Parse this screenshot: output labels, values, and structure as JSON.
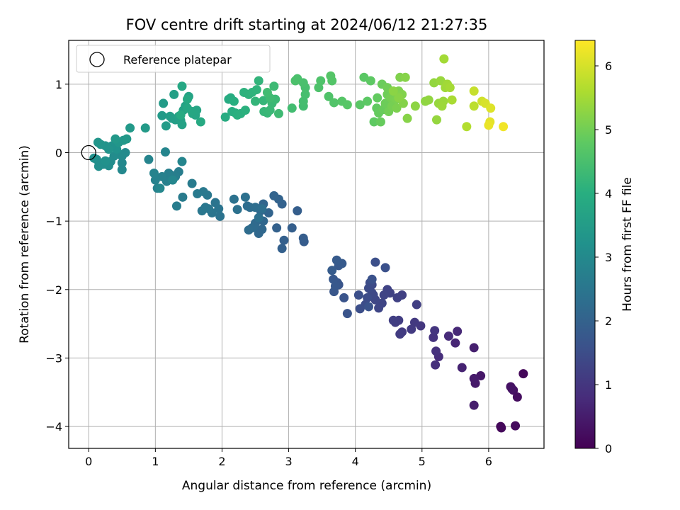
{
  "chart_data": {
    "type": "scatter",
    "title": "FOV centre drift starting at 2024/06/12 21:27:35",
    "xlabel": "Angular distance from reference (arcmin)",
    "ylabel": "Rotation from reference (arcmin)",
    "xlim": [
      -0.3,
      6.83
    ],
    "ylim": [
      -4.32,
      1.64
    ],
    "xticks": [
      0,
      1,
      2,
      3,
      4,
      5,
      6
    ],
    "yticks": [
      -4,
      -3,
      -2,
      -1,
      0,
      1
    ],
    "xtick_labels": [
      "0",
      "1",
      "2",
      "3",
      "4",
      "5",
      "6"
    ],
    "ytick_labels": [
      "−4",
      "−3",
      "−2",
      "−1",
      "0",
      "1"
    ],
    "grid": true,
    "legend": {
      "position": "top-left",
      "entries": [
        "Reference platepar"
      ]
    },
    "reference_point": {
      "x": 0,
      "y": 0
    },
    "colorbar": {
      "label": "Hours from first FF file",
      "colormap": "viridis",
      "range": [
        0,
        6.4
      ],
      "ticks": [
        0,
        1,
        2,
        3,
        4,
        5,
        6
      ],
      "tick_labels": [
        "0",
        "1",
        "2",
        "3",
        "4",
        "5",
        "6"
      ]
    },
    "points": [
      [
        6.52,
        -3.23,
        0.1
      ],
      [
        6.18,
        -4.0,
        0.12
      ],
      [
        6.19,
        -4.02,
        0.15
      ],
      [
        6.4,
        -3.99,
        0.18
      ],
      [
        6.43,
        -3.57,
        0.22
      ],
      [
        6.37,
        -3.47,
        0.26
      ],
      [
        6.33,
        -3.42,
        0.3
      ],
      [
        6.35,
        -3.45,
        0.33
      ],
      [
        5.88,
        -3.26,
        0.4
      ],
      [
        5.8,
        -3.37,
        0.45
      ],
      [
        5.78,
        -3.3,
        0.48
      ],
      [
        5.78,
        -3.69,
        0.52
      ],
      [
        5.78,
        -2.85,
        0.56
      ],
      [
        5.6,
        -3.14,
        0.62
      ],
      [
        5.5,
        -2.78,
        0.68
      ],
      [
        5.53,
        -2.61,
        0.72
      ],
      [
        5.4,
        -2.68,
        0.76
      ],
      [
        5.25,
        -2.98,
        0.82
      ],
      [
        5.2,
        -3.1,
        0.86
      ],
      [
        5.21,
        -2.9,
        0.9
      ],
      [
        5.17,
        -2.7,
        0.94
      ],
      [
        5.19,
        -2.6,
        0.98
      ],
      [
        4.98,
        -2.53,
        1.02
      ],
      [
        4.89,
        -2.48,
        1.05
      ],
      [
        4.84,
        -2.58,
        1.08
      ],
      [
        4.7,
        -2.62,
        1.1
      ],
      [
        4.67,
        -2.65,
        1.12
      ],
      [
        4.65,
        -2.45,
        1.14
      ],
      [
        4.6,
        -2.48,
        1.16
      ],
      [
        4.57,
        -2.45,
        1.18
      ],
      [
        4.92,
        -2.22,
        1.2
      ],
      [
        4.7,
        -2.08,
        1.22
      ],
      [
        4.63,
        -2.12,
        1.24
      ],
      [
        4.52,
        -2.05,
        1.26
      ],
      [
        4.48,
        -2.0,
        1.28
      ],
      [
        4.43,
        -2.08,
        1.3
      ],
      [
        4.4,
        -2.2,
        1.32
      ],
      [
        4.35,
        -2.27,
        1.34
      ],
      [
        4.3,
        -2.15,
        1.36
      ],
      [
        4.27,
        -2.08,
        1.38
      ],
      [
        4.25,
        -2.05,
        1.4
      ],
      [
        4.25,
        -1.93,
        1.42
      ],
      [
        4.2,
        -1.98,
        1.44
      ],
      [
        4.22,
        -1.9,
        1.46
      ],
      [
        4.18,
        -2.12,
        1.48
      ],
      [
        4.15,
        -2.22,
        1.5
      ],
      [
        4.07,
        -2.28,
        1.52
      ],
      [
        4.05,
        -2.08,
        1.54
      ],
      [
        4.3,
        -1.6,
        1.56
      ],
      [
        4.45,
        -1.68,
        1.58
      ],
      [
        4.25,
        -1.85,
        1.6
      ],
      [
        4.2,
        -2.25,
        1.62
      ],
      [
        3.88,
        -2.35,
        1.64
      ],
      [
        3.83,
        -2.12,
        1.66
      ],
      [
        3.75,
        -1.93,
        1.68
      ],
      [
        3.73,
        -1.9,
        1.7
      ],
      [
        3.68,
        -2.03,
        1.72
      ],
      [
        3.7,
        -1.95,
        1.74
      ],
      [
        3.67,
        -1.85,
        1.76
      ],
      [
        3.75,
        -1.65,
        1.78
      ],
      [
        3.8,
        -1.62,
        1.8
      ],
      [
        3.72,
        -1.57,
        1.82
      ],
      [
        3.65,
        -1.72,
        1.84
      ],
      [
        3.23,
        -1.3,
        1.86
      ],
      [
        3.22,
        -1.25,
        1.88
      ],
      [
        3.13,
        -0.85,
        1.9
      ],
      [
        3.05,
        -1.1,
        1.92
      ],
      [
        2.93,
        -1.28,
        1.94
      ],
      [
        2.9,
        -1.4,
        1.96
      ],
      [
        2.82,
        -1.1,
        1.98
      ],
      [
        2.9,
        -0.75,
        2.0
      ],
      [
        2.85,
        -0.68,
        2.02
      ],
      [
        2.78,
        -0.63,
        2.04
      ],
      [
        2.7,
        -0.88,
        2.06
      ],
      [
        2.62,
        -0.75,
        2.08
      ],
      [
        2.58,
        -0.85,
        2.1
      ],
      [
        2.62,
        -1.0,
        2.12
      ],
      [
        2.6,
        -1.12,
        2.14
      ],
      [
        2.55,
        -1.18,
        2.16
      ],
      [
        2.5,
        -1.03,
        2.18
      ],
      [
        2.48,
        -1.08,
        2.2
      ],
      [
        2.45,
        -1.1,
        2.22
      ],
      [
        2.4,
        -1.13,
        2.24
      ],
      [
        2.42,
        -0.8,
        2.26
      ],
      [
        2.38,
        -0.78,
        2.28
      ],
      [
        2.5,
        -0.8,
        2.3
      ],
      [
        2.6,
        -0.82,
        2.32
      ],
      [
        2.55,
        -0.95,
        2.34
      ],
      [
        2.35,
        -0.65,
        2.36
      ],
      [
        2.23,
        -0.83,
        2.38
      ],
      [
        2.18,
        -0.68,
        2.4
      ],
      [
        1.97,
        -0.93,
        2.42
      ],
      [
        1.95,
        -0.82,
        2.44
      ],
      [
        1.9,
        -0.73,
        2.46
      ],
      [
        1.85,
        -0.88,
        2.48
      ],
      [
        1.8,
        -0.82,
        2.5
      ],
      [
        1.75,
        -0.8,
        2.52
      ],
      [
        1.7,
        -0.85,
        2.54
      ],
      [
        1.78,
        -0.62,
        2.56
      ],
      [
        1.72,
        -0.57,
        2.58
      ],
      [
        1.63,
        -0.6,
        2.6
      ],
      [
        1.55,
        -0.45,
        2.62
      ],
      [
        1.41,
        -0.65,
        2.64
      ],
      [
        1.32,
        -0.78,
        2.66
      ],
      [
        1.35,
        -0.28,
        2.68
      ],
      [
        1.3,
        -0.35,
        2.7
      ],
      [
        1.24,
        -0.33,
        2.72
      ],
      [
        1.2,
        -0.3,
        2.74
      ],
      [
        1.17,
        -0.42,
        2.76
      ],
      [
        1.1,
        -0.35,
        2.78
      ],
      [
        1.03,
        -0.52,
        2.8
      ],
      [
        1.0,
        -0.4,
        2.82
      ],
      [
        0.98,
        -0.3,
        2.84
      ],
      [
        0.9,
        -0.1,
        2.86
      ],
      [
        1.15,
        0.01,
        2.88
      ],
      [
        1.4,
        -0.13,
        2.9
      ],
      [
        1.26,
        -0.4,
        2.92
      ],
      [
        1.07,
        -0.52,
        2.94
      ],
      [
        0.5,
        -0.25,
        2.96
      ],
      [
        0.5,
        -0.15,
        2.98
      ],
      [
        0.5,
        -0.05,
        3.0
      ],
      [
        0.55,
        0.0,
        3.02
      ],
      [
        0.48,
        -0.03,
        3.04
      ],
      [
        0.38,
        -0.05,
        3.06
      ],
      [
        0.33,
        -0.13,
        3.08
      ],
      [
        0.3,
        -0.19,
        3.1
      ],
      [
        0.22,
        -0.17,
        3.12
      ],
      [
        0.15,
        -0.2,
        3.14
      ],
      [
        0.12,
        -0.1,
        3.16
      ],
      [
        0.08,
        -0.08,
        3.18
      ],
      [
        0.25,
        -0.12,
        3.2
      ],
      [
        0.42,
        0.05,
        3.22
      ],
      [
        0.35,
        0.1,
        3.24
      ],
      [
        0.3,
        0.05,
        3.26
      ],
      [
        0.25,
        0.1,
        3.28
      ],
      [
        0.18,
        0.12,
        3.3
      ],
      [
        0.14,
        0.15,
        3.32
      ],
      [
        0.45,
        0.15,
        3.34
      ],
      [
        0.52,
        0.18,
        3.36
      ],
      [
        0.4,
        0.2,
        3.38
      ],
      [
        0.57,
        0.2,
        3.4
      ],
      [
        0.62,
        0.36,
        3.42
      ],
      [
        0.85,
        0.36,
        3.44
      ],
      [
        1.1,
        0.54,
        3.46
      ],
      [
        1.12,
        0.72,
        3.48
      ],
      [
        1.16,
        0.39,
        3.5
      ],
      [
        1.22,
        0.53,
        3.52
      ],
      [
        1.25,
        0.5,
        3.54
      ],
      [
        1.3,
        0.48,
        3.56
      ],
      [
        1.28,
        0.85,
        3.58
      ],
      [
        1.35,
        0.53,
        3.6
      ],
      [
        1.38,
        0.47,
        3.62
      ],
      [
        1.4,
        0.41,
        3.64
      ],
      [
        1.42,
        0.62,
        3.66
      ],
      [
        1.45,
        0.68,
        3.68
      ],
      [
        1.5,
        0.82,
        3.7
      ],
      [
        1.56,
        0.57,
        3.72
      ],
      [
        1.6,
        0.55,
        3.74
      ],
      [
        1.62,
        0.62,
        3.76
      ],
      [
        1.55,
        0.6,
        3.78
      ],
      [
        1.48,
        0.65,
        3.8
      ],
      [
        1.4,
        0.97,
        3.82
      ],
      [
        1.48,
        0.78,
        3.84
      ],
      [
        1.68,
        0.45,
        3.86
      ],
      [
        1.38,
        0.55,
        3.88
      ],
      [
        2.1,
        0.78,
        3.9
      ],
      [
        2.05,
        0.52,
        3.92
      ],
      [
        2.13,
        0.8,
        3.94
      ],
      [
        2.15,
        0.6,
        3.96
      ],
      [
        2.2,
        0.58,
        3.98
      ],
      [
        2.18,
        0.75,
        4.0
      ],
      [
        2.23,
        0.55,
        4.02
      ],
      [
        2.28,
        0.57,
        4.04
      ],
      [
        2.35,
        0.62,
        4.06
      ],
      [
        2.33,
        0.88,
        4.08
      ],
      [
        2.4,
        0.85,
        4.1
      ],
      [
        2.45,
        0.88,
        4.12
      ],
      [
        2.52,
        0.92,
        4.14
      ],
      [
        2.55,
        1.05,
        4.16
      ],
      [
        2.5,
        0.75,
        4.18
      ],
      [
        2.62,
        0.76,
        4.2
      ],
      [
        2.63,
        0.6,
        4.22
      ],
      [
        2.68,
        0.58,
        4.24
      ],
      [
        2.72,
        0.62,
        4.26
      ],
      [
        2.75,
        0.72,
        4.28
      ],
      [
        2.8,
        0.78,
        4.3
      ],
      [
        2.78,
        0.97,
        4.32
      ],
      [
        2.85,
        0.57,
        4.34
      ],
      [
        2.72,
        0.8,
        4.36
      ],
      [
        2.68,
        0.88,
        4.38
      ],
      [
        3.05,
        0.65,
        4.4
      ],
      [
        3.22,
        0.68,
        4.42
      ],
      [
        3.22,
        0.75,
        4.44
      ],
      [
        3.25,
        0.85,
        4.46
      ],
      [
        3.25,
        0.95,
        4.48
      ],
      [
        3.22,
        1.02,
        4.5
      ],
      [
        3.13,
        1.08,
        4.52
      ],
      [
        3.1,
        1.05,
        4.54
      ],
      [
        3.45,
        0.95,
        4.56
      ],
      [
        3.48,
        1.05,
        4.58
      ],
      [
        3.6,
        0.82,
        4.6
      ],
      [
        3.68,
        0.73,
        4.62
      ],
      [
        3.65,
        1.05,
        4.64
      ],
      [
        3.63,
        1.12,
        4.66
      ],
      [
        3.8,
        0.75,
        4.68
      ],
      [
        3.88,
        0.7,
        4.7
      ],
      [
        4.07,
        0.7,
        4.72
      ],
      [
        4.13,
        1.1,
        4.74
      ],
      [
        4.18,
        0.75,
        4.76
      ],
      [
        4.23,
        1.05,
        4.78
      ],
      [
        4.28,
        0.45,
        4.8
      ],
      [
        4.32,
        0.65,
        4.82
      ],
      [
        4.33,
        0.8,
        4.84
      ],
      [
        4.35,
        0.58,
        4.86
      ],
      [
        4.38,
        0.45,
        4.88
      ],
      [
        4.42,
        0.63,
        4.9
      ],
      [
        4.4,
        1.0,
        4.92
      ],
      [
        4.45,
        0.72,
        4.94
      ],
      [
        4.48,
        0.85,
        4.96
      ],
      [
        4.48,
        0.95,
        4.98
      ],
      [
        4.5,
        0.6,
        5.0
      ],
      [
        4.53,
        0.8,
        5.02
      ],
      [
        4.55,
        0.68,
        5.04
      ],
      [
        4.58,
        0.8,
        5.06
      ],
      [
        4.62,
        0.78,
        5.08
      ],
      [
        4.62,
        0.65,
        5.1
      ],
      [
        4.65,
        0.9,
        5.12
      ],
      [
        4.67,
        1.1,
        5.14
      ],
      [
        4.7,
        0.85,
        5.16
      ],
      [
        4.72,
        0.72,
        5.18
      ],
      [
        4.75,
        1.1,
        5.2
      ],
      [
        4.78,
        0.5,
        5.22
      ],
      [
        4.65,
        0.8,
        5.24
      ],
      [
        4.57,
        0.9,
        5.26
      ],
      [
        4.9,
        0.68,
        5.28
      ],
      [
        5.05,
        0.75,
        5.3
      ],
      [
        5.1,
        0.77,
        5.32
      ],
      [
        5.18,
        1.02,
        5.34
      ],
      [
        5.22,
        0.48,
        5.36
      ],
      [
        5.25,
        0.72,
        5.38
      ],
      [
        5.28,
        1.05,
        5.4
      ],
      [
        5.32,
        0.75,
        5.42
      ],
      [
        5.3,
        0.68,
        5.44
      ],
      [
        5.35,
        0.95,
        5.46
      ],
      [
        5.38,
        1.0,
        5.48
      ],
      [
        5.33,
        1.37,
        5.5
      ],
      [
        5.42,
        0.95,
        5.52
      ],
      [
        5.45,
        0.77,
        5.56
      ],
      [
        5.67,
        0.38,
        5.65
      ],
      [
        5.78,
        0.68,
        5.75
      ],
      [
        5.78,
        0.9,
        5.85
      ],
      [
        5.9,
        0.75,
        5.95
      ],
      [
        5.95,
        0.72,
        6.02
      ],
      [
        6.03,
        0.65,
        6.08
      ],
      [
        6.02,
        0.45,
        6.14
      ],
      [
        6.0,
        0.4,
        6.2
      ],
      [
        6.22,
        0.38,
        6.28
      ]
    ]
  }
}
